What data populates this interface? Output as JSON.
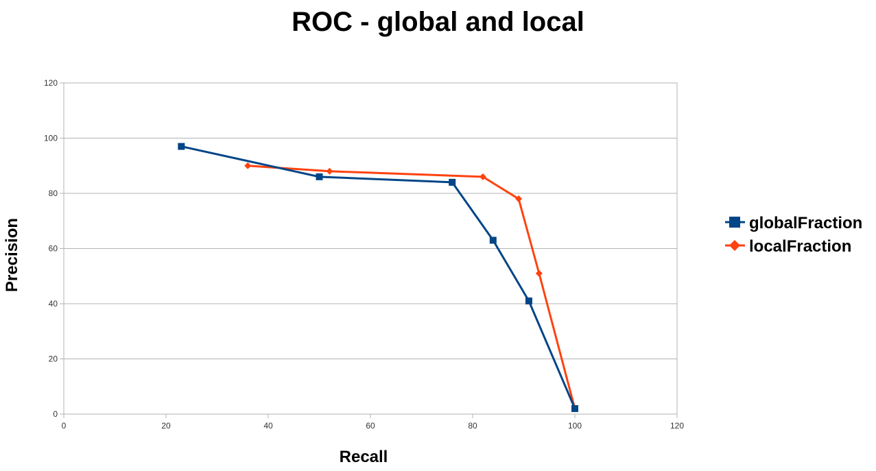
{
  "chart_data": {
    "type": "line",
    "title": "ROC - global and local",
    "xlabel": "Recall",
    "ylabel": "Precision",
    "xlim": [
      0,
      120
    ],
    "ylim": [
      0,
      120
    ],
    "xticks": [
      0,
      20,
      40,
      60,
      80,
      100,
      120
    ],
    "yticks": [
      0,
      20,
      40,
      60,
      80,
      100,
      120
    ],
    "grid": "horizontal",
    "legend": "right",
    "series": [
      {
        "name": "globalFraction",
        "color": "#004586",
        "marker": "square",
        "points": [
          [
            23,
            97
          ],
          [
            50,
            86
          ],
          [
            76,
            84
          ],
          [
            84,
            63
          ],
          [
            91,
            41
          ],
          [
            100,
            2
          ]
        ]
      },
      {
        "name": "localFraction",
        "color": "#ff420e",
        "marker": "diamond",
        "points": [
          [
            36,
            90
          ],
          [
            52,
            88
          ],
          [
            82,
            86
          ],
          [
            89,
            78
          ],
          [
            93,
            51
          ],
          [
            100,
            2
          ]
        ]
      }
    ]
  }
}
